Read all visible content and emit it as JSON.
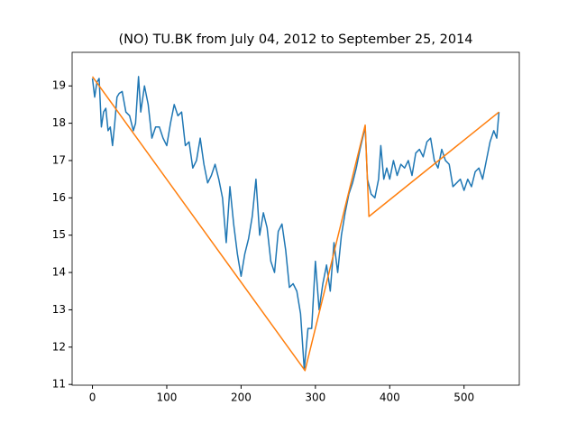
{
  "chart_data": {
    "type": "line",
    "title": "(NO) TU.BK from July 04, 2012 to September 25, 2014",
    "xlim": [
      -27.35,
      574.35
    ],
    "xticks": [
      0,
      100,
      200,
      300,
      400,
      500
    ],
    "ylim": [
      10.98,
      19.9
    ],
    "yticks": [
      11,
      12,
      13,
      14,
      15,
      16,
      17,
      18,
      19
    ],
    "series": [
      {
        "color": "#1f77b4",
        "x": [
          0,
          3,
          6,
          9,
          12,
          15,
          18,
          21,
          24,
          27,
          30,
          33,
          36,
          40,
          45,
          50,
          55,
          58,
          62,
          65,
          70,
          75,
          80,
          85,
          90,
          95,
          100,
          105,
          110,
          115,
          120,
          125,
          130,
          135,
          140,
          145,
          150,
          155,
          160,
          165,
          170,
          175,
          180,
          185,
          190,
          195,
          200,
          205,
          210,
          215,
          220,
          225,
          230,
          235,
          240,
          245,
          250,
          255,
          260,
          265,
          270,
          275,
          280,
          285,
          290,
          295,
          300,
          305,
          310,
          315,
          320,
          325,
          330,
          335,
          340,
          345,
          350,
          355,
          360,
          367,
          370,
          375,
          380,
          385,
          388,
          392,
          396,
          400,
          405,
          410,
          415,
          420,
          425,
          430,
          435,
          440,
          445,
          450,
          455,
          460,
          465,
          470,
          475,
          480,
          485,
          490,
          495,
          500,
          505,
          510,
          515,
          520,
          525,
          530,
          535,
          540,
          544,
          547
        ],
        "values": [
          19.2,
          18.7,
          19.1,
          19.2,
          17.9,
          18.3,
          18.4,
          17.8,
          17.9,
          17.4,
          18.0,
          18.7,
          18.8,
          18.85,
          18.3,
          18.2,
          17.8,
          18.0,
          19.25,
          18.3,
          19.0,
          18.5,
          17.6,
          17.9,
          17.9,
          17.6,
          17.4,
          18.0,
          18.5,
          18.2,
          18.3,
          17.4,
          17.5,
          16.8,
          17.0,
          17.6,
          16.9,
          16.4,
          16.6,
          16.9,
          16.5,
          16.0,
          14.8,
          16.3,
          15.3,
          14.5,
          13.9,
          14.5,
          14.9,
          15.5,
          16.5,
          15.0,
          15.6,
          15.2,
          14.3,
          14.0,
          15.1,
          15.3,
          14.6,
          13.6,
          13.7,
          13.5,
          12.9,
          11.4,
          12.5,
          12.5,
          14.3,
          13.0,
          13.7,
          14.2,
          13.5,
          14.8,
          14.0,
          15.0,
          15.6,
          16.1,
          16.4,
          16.8,
          17.3,
          17.9,
          16.5,
          16.1,
          16.0,
          16.5,
          17.4,
          16.5,
          16.8,
          16.5,
          17.0,
          16.6,
          16.9,
          16.8,
          17.0,
          16.6,
          17.2,
          17.3,
          17.1,
          17.5,
          17.6,
          17.0,
          16.8,
          17.3,
          17.0,
          16.9,
          16.3,
          16.4,
          16.5,
          16.2,
          16.5,
          16.3,
          16.7,
          16.8,
          16.5,
          17.0,
          17.5,
          17.8,
          17.6,
          18.3
        ]
      },
      {
        "color": "#ff7f0e",
        "x": [
          0,
          286,
          367,
          372,
          547
        ],
        "values": [
          19.25,
          11.37,
          17.95,
          15.5,
          18.3
        ]
      }
    ]
  }
}
